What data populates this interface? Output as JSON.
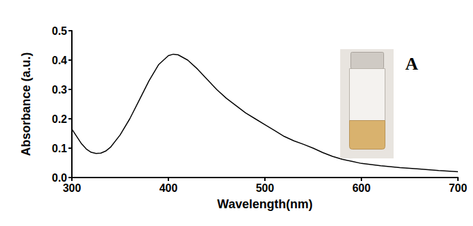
{
  "chart_data": {
    "type": "line",
    "x_label": "Wavelength(nm)",
    "y_label": "Absorbance (a.u.)",
    "annotation": "A",
    "color": "#000000",
    "x": [
      300,
      305,
      310,
      315,
      320,
      325,
      330,
      335,
      340,
      350,
      360,
      370,
      380,
      390,
      400,
      405,
      410,
      420,
      430,
      440,
      450,
      460,
      470,
      480,
      490,
      500,
      510,
      520,
      530,
      540,
      550,
      560,
      570,
      580,
      590,
      600,
      620,
      640,
      660,
      680,
      700
    ],
    "values": [
      0.165,
      0.14,
      0.115,
      0.097,
      0.086,
      0.082,
      0.083,
      0.09,
      0.103,
      0.145,
      0.2,
      0.265,
      0.33,
      0.385,
      0.415,
      0.42,
      0.418,
      0.4,
      0.37,
      0.335,
      0.3,
      0.27,
      0.245,
      0.22,
      0.2,
      0.18,
      0.16,
      0.14,
      0.125,
      0.113,
      0.1,
      0.085,
      0.072,
      0.062,
      0.055,
      0.048,
      0.04,
      0.034,
      0.029,
      0.024,
      0.02
    ],
    "xlim": [
      300,
      700
    ],
    "xticks": [
      300,
      400,
      500,
      600,
      700
    ],
    "ylim": [
      0,
      0.5
    ],
    "yticks": [
      {
        "value": 0,
        "label": "0.0"
      },
      0.1,
      0.2,
      0.3,
      0.4,
      0.5
    ],
    "grid": false
  }
}
